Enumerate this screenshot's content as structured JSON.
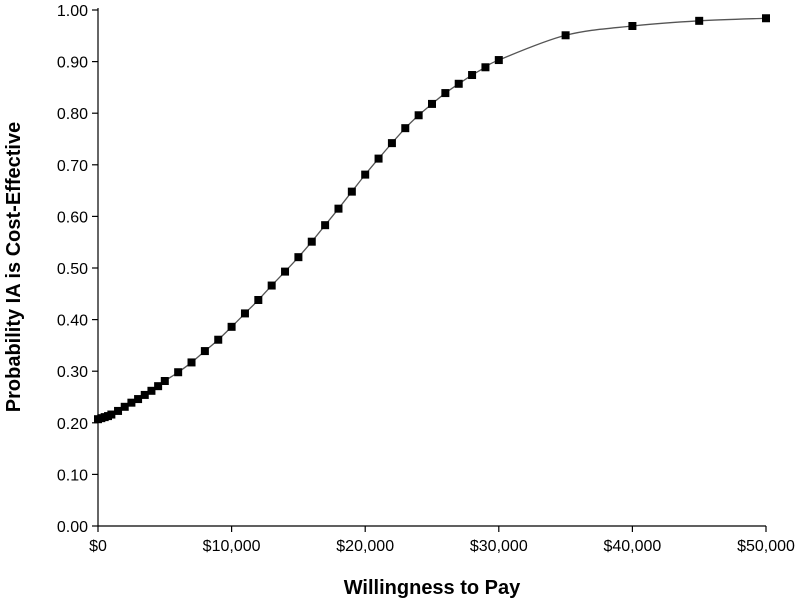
{
  "chart_data": {
    "type": "line",
    "title": "",
    "xlabel": "Willingness to Pay",
    "ylabel": "Probability  IA  is Cost-Effective",
    "xlim": [
      0,
      50000
    ],
    "ylim": [
      0,
      1.0
    ],
    "x_ticks": [
      {
        "value": 0,
        "label": "$0"
      },
      {
        "value": 10000,
        "label": "$10,000"
      },
      {
        "value": 20000,
        "label": "$20,000"
      },
      {
        "value": 30000,
        "label": "$30,000"
      },
      {
        "value": 40000,
        "label": "$40,000"
      },
      {
        "value": 50000,
        "label": "$50,000"
      }
    ],
    "y_ticks": [
      {
        "value": 0.0,
        "label": "0.00"
      },
      {
        "value": 0.1,
        "label": "0.10"
      },
      {
        "value": 0.2,
        "label": "0.20"
      },
      {
        "value": 0.3,
        "label": "0.30"
      },
      {
        "value": 0.4,
        "label": "0.40"
      },
      {
        "value": 0.5,
        "label": "0.50"
      },
      {
        "value": 0.6,
        "label": "0.60"
      },
      {
        "value": 0.7,
        "label": "0.70"
      },
      {
        "value": 0.8,
        "label": "0.80"
      },
      {
        "value": 0.9,
        "label": "0.90"
      },
      {
        "value": 1.0,
        "label": "1.00"
      }
    ],
    "grid": false,
    "legend": "none",
    "marker": "square",
    "line_color": "#555555",
    "marker_color": "#000000",
    "series": [
      {
        "x": [
          0,
          250,
          500,
          750,
          1000,
          1500,
          2000,
          2500,
          3000,
          3500,
          4000,
          4500,
          5000,
          6000,
          7000,
          8000,
          9000,
          10000,
          11000,
          12000,
          13000,
          14000,
          15000,
          16000,
          17000,
          18000,
          19000,
          20000,
          21000,
          22000,
          23000,
          24000,
          25000,
          26000,
          27000,
          28000,
          29000,
          30000,
          35000,
          40000,
          45000,
          50000
        ],
        "y": [
          0.207,
          0.209,
          0.211,
          0.213,
          0.216,
          0.223,
          0.231,
          0.239,
          0.246,
          0.254,
          0.262,
          0.271,
          0.281,
          0.298,
          0.317,
          0.339,
          0.361,
          0.386,
          0.412,
          0.438,
          0.466,
          0.493,
          0.521,
          0.551,
          0.583,
          0.615,
          0.648,
          0.681,
          0.712,
          0.742,
          0.771,
          0.796,
          0.818,
          0.839,
          0.857,
          0.874,
          0.889,
          0.903,
          0.951,
          0.969,
          0.979,
          0.984
        ]
      }
    ]
  }
}
